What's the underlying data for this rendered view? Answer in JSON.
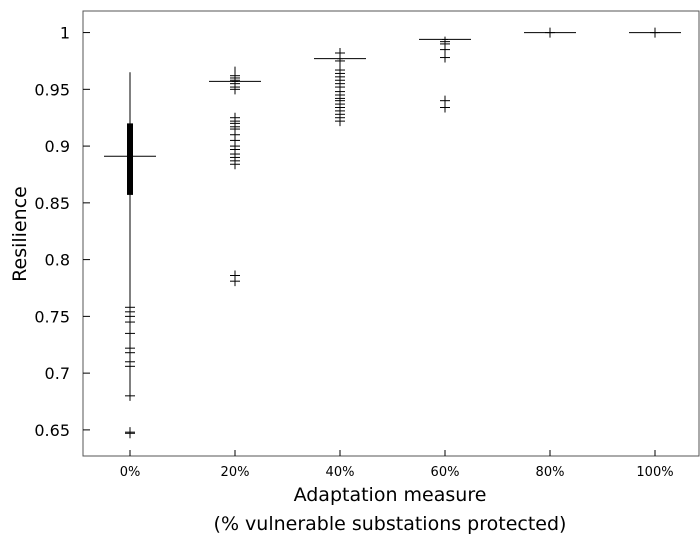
{
  "chart_data": {
    "type": "boxplot",
    "xlabel": "Adaptation measure",
    "xlabel_line2": "(% vulnerable substations protected)",
    "ylabel": "Resilience",
    "categories": [
      "0%",
      "20%",
      "40%",
      "60%",
      "80%",
      "100%"
    ],
    "ylim": [
      0.627,
      1.019
    ],
    "yticks": [
      0.65,
      0.7,
      0.75,
      0.8,
      0.85,
      0.9,
      0.95,
      1
    ],
    "ytick_labels": [
      "0.65",
      "0.7",
      "0.75",
      "0.8",
      "0.85",
      "0.9",
      "0.95",
      "1"
    ],
    "grid": false,
    "boxes": [
      {
        "category": "0%",
        "median": 0.891,
        "q1": 0.857,
        "q3": 0.92,
        "whisker_low": 0.68,
        "whisker_high": 0.965,
        "outliers": [
          0.758,
          0.754,
          0.75,
          0.745,
          0.735,
          0.722,
          0.718,
          0.71,
          0.706,
          0.68,
          0.648,
          0.647
        ]
      },
      {
        "category": "20%",
        "median": 0.957,
        "q1": 0.957,
        "q3": 0.957,
        "whisker_low": 0.957,
        "whisker_high": 0.97,
        "outliers": [
          0.962,
          0.96,
          0.958,
          0.955,
          0.952,
          0.95,
          0.925,
          0.922,
          0.92,
          0.917,
          0.915,
          0.91,
          0.905,
          0.9,
          0.897,
          0.893,
          0.89,
          0.887,
          0.884,
          0.786,
          0.781
        ]
      },
      {
        "category": "40%",
        "median": 0.977,
        "q1": 0.977,
        "q3": 0.977,
        "whisker_low": 0.977,
        "whisker_high": 0.984,
        "outliers": [
          0.982,
          0.975,
          0.967,
          0.964,
          0.961,
          0.958,
          0.955,
          0.952,
          0.948,
          0.945,
          0.942,
          0.94,
          0.937,
          0.934,
          0.931,
          0.928,
          0.925,
          0.922
        ]
      },
      {
        "category": "60%",
        "median": 0.994,
        "q1": 0.994,
        "q3": 0.994,
        "whisker_low": 0.994,
        "whisker_high": 0.994,
        "outliers": [
          0.992,
          0.99,
          0.985,
          0.978,
          0.94,
          0.934
        ]
      },
      {
        "category": "80%",
        "median": 1.0,
        "q1": 1.0,
        "q3": 1.0,
        "whisker_low": 1.0,
        "whisker_high": 1.0,
        "outliers": [
          1.0
        ]
      },
      {
        "category": "100%",
        "median": 1.0,
        "q1": 1.0,
        "q3": 1.0,
        "whisker_low": 1.0,
        "whisker_high": 1.0,
        "outliers": [
          1.0
        ]
      }
    ]
  }
}
